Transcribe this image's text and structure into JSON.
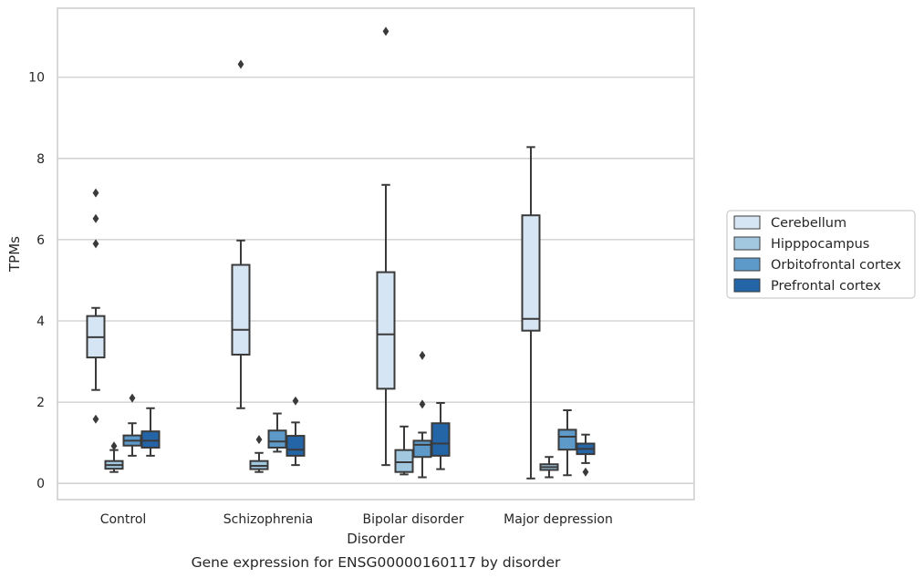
{
  "caption": "Gene expression for ENSG00000160117 by disorder",
  "chart_data": {
    "type": "boxplot",
    "xlabel": "Disorder",
    "ylabel": "TPMs",
    "ylim": [
      -0.4,
      11.7
    ],
    "yticks": [
      0,
      2,
      4,
      6,
      8,
      10
    ],
    "grid": "horizontal",
    "legend_placement": "right",
    "categories": [
      "Control",
      "Schizophrenia",
      "Bipolar disorder",
      "Major depression"
    ],
    "series": [
      {
        "name": "Cerebellum",
        "color": "#d6e5f3",
        "boxes": [
          {
            "whisker_low": 2.3,
            "q1": 3.1,
            "median": 3.6,
            "q3": 4.12,
            "whisker_high": 4.32,
            "outliers": [
              7.15,
              6.52,
              5.9,
              1.58
            ]
          },
          {
            "whisker_low": 1.85,
            "q1": 3.17,
            "median": 3.78,
            "q3": 5.38,
            "whisker_high": 5.98,
            "outliers": [
              10.32
            ]
          },
          {
            "whisker_low": 0.45,
            "q1": 2.33,
            "median": 3.67,
            "q3": 5.2,
            "whisker_high": 7.35,
            "outliers": [
              11.13
            ]
          },
          {
            "whisker_low": 0.12,
            "q1": 3.76,
            "median": 4.05,
            "q3": 6.6,
            "whisker_high": 8.28,
            "outliers": []
          }
        ]
      },
      {
        "name": "Hipppocampus",
        "color": "#a2c8e0",
        "boxes": [
          {
            "whisker_low": 0.28,
            "q1": 0.36,
            "median": 0.45,
            "q3": 0.55,
            "whisker_high": 0.82,
            "outliers": [
              0.92
            ]
          },
          {
            "whisker_low": 0.28,
            "q1": 0.35,
            "median": 0.43,
            "q3": 0.55,
            "whisker_high": 0.75,
            "outliers": [
              1.08
            ]
          },
          {
            "whisker_low": 0.22,
            "q1": 0.28,
            "median": 0.52,
            "q3": 0.82,
            "whisker_high": 1.4,
            "outliers": []
          },
          {
            "whisker_low": 0.15,
            "q1": 0.33,
            "median": 0.4,
            "q3": 0.47,
            "whisker_high": 0.65,
            "outliers": []
          }
        ]
      },
      {
        "name": "Orbitofrontal cortex",
        "color": "#5d9ac9",
        "boxes": [
          {
            "whisker_low": 0.68,
            "q1": 0.93,
            "median": 1.05,
            "q3": 1.18,
            "whisker_high": 1.48,
            "outliers": [
              2.1
            ]
          },
          {
            "whisker_low": 0.78,
            "q1": 0.88,
            "median": 1.03,
            "q3": 1.3,
            "whisker_high": 1.72,
            "outliers": []
          },
          {
            "whisker_low": 0.15,
            "q1": 0.65,
            "median": 0.95,
            "q3": 1.05,
            "whisker_high": 1.25,
            "outliers": [
              3.15,
              1.95
            ]
          },
          {
            "whisker_low": 0.2,
            "q1": 0.83,
            "median": 1.15,
            "q3": 1.32,
            "whisker_high": 1.8,
            "outliers": []
          }
        ]
      },
      {
        "name": "Prefrontal cortex",
        "color": "#2465a8",
        "boxes": [
          {
            "whisker_low": 0.68,
            "q1": 0.88,
            "median": 1.05,
            "q3": 1.28,
            "whisker_high": 1.85,
            "outliers": []
          },
          {
            "whisker_low": 0.45,
            "q1": 0.68,
            "median": 0.83,
            "q3": 1.17,
            "whisker_high": 1.5,
            "outliers": [
              2.03
            ]
          },
          {
            "whisker_low": 0.35,
            "q1": 0.68,
            "median": 0.98,
            "q3": 1.48,
            "whisker_high": 1.98,
            "outliers": []
          },
          {
            "whisker_low": 0.5,
            "q1": 0.72,
            "median": 0.85,
            "q3": 0.98,
            "whisker_high": 1.2,
            "outliers": [
              0.28
            ]
          }
        ]
      }
    ]
  }
}
